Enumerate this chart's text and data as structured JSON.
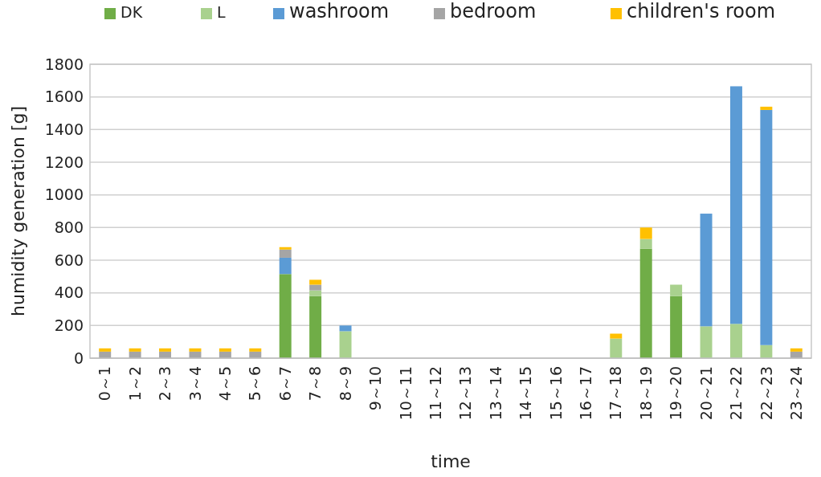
{
  "chart_data": {
    "type": "bar",
    "stacked": true,
    "xlabel": "time",
    "ylabel": "humidity generation [g]",
    "categories": [
      "0～1",
      "1～2",
      "2～3",
      "3～4",
      "4～5",
      "5～6",
      "6～7",
      "7～8",
      "8～9",
      "9～10",
      "10～11",
      "11～12",
      "12～13",
      "13～14",
      "14～15",
      "15～16",
      "16～17",
      "17～18",
      "18～19",
      "19～20",
      "20～21",
      "21～22",
      "22～23",
      "23～24"
    ],
    "series": [
      {
        "name": "DK",
        "color": "#70ad47",
        "values": [
          0,
          0,
          0,
          0,
          0,
          0,
          515,
          380,
          0,
          0,
          0,
          0,
          0,
          0,
          0,
          0,
          0,
          0,
          670,
          380,
          0,
          0,
          0,
          0
        ]
      },
      {
        "name": "L",
        "color": "#a9d18e",
        "values": [
          0,
          0,
          0,
          0,
          0,
          0,
          0,
          35,
          165,
          0,
          0,
          0,
          0,
          0,
          0,
          0,
          0,
          120,
          60,
          70,
          195,
          210,
          80,
          0
        ]
      },
      {
        "name": "washroom",
        "color": "#5b9bd5",
        "values": [
          0,
          0,
          0,
          0,
          0,
          0,
          100,
          0,
          35,
          0,
          0,
          0,
          0,
          0,
          0,
          0,
          0,
          0,
          0,
          0,
          690,
          1455,
          1440,
          0
        ]
      },
      {
        "name": "bedroom",
        "color": "#a5a5a5",
        "values": [
          40,
          40,
          40,
          40,
          40,
          40,
          50,
          35,
          0,
          0,
          0,
          0,
          0,
          0,
          0,
          0,
          0,
          0,
          0,
          0,
          0,
          null,
          0,
          40
        ]
      },
      {
        "name": "children's room",
        "color": "#ffc000",
        "values": [
          20,
          20,
          20,
          20,
          20,
          20,
          15,
          30,
          0,
          0,
          0,
          0,
          0,
          0,
          0,
          0,
          0,
          30,
          70,
          0,
          0,
          0,
          20,
          20
        ]
      }
    ],
    "ylim": [
      0,
      1800
    ],
    "yticks": [
      0,
      200,
      400,
      600,
      800,
      1000,
      1200,
      1400,
      1600,
      1800
    ],
    "grid": "y",
    "legend": "top"
  }
}
